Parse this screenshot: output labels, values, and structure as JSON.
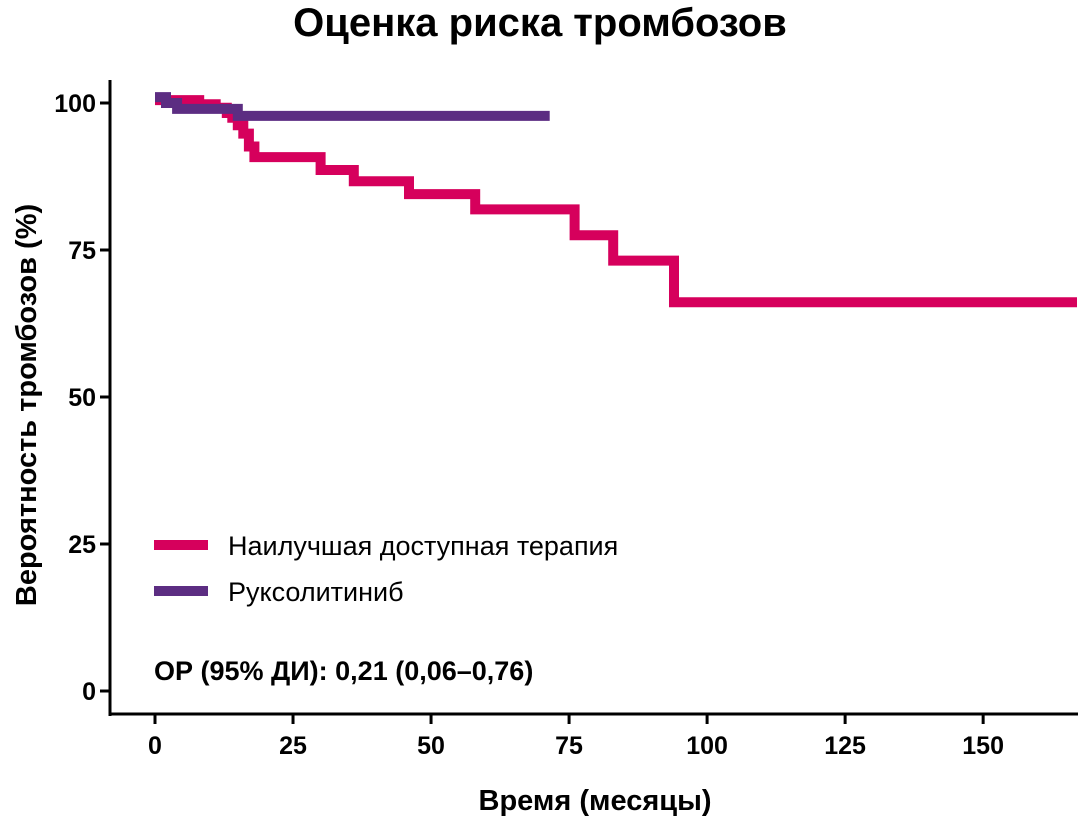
{
  "chart_data": {
    "type": "line",
    "step": true,
    "title": "Оценка риска тромбозов",
    "xlabel": "Время (месяцы)",
    "ylabel": "Вероятность тромбозов (%)",
    "xlim": [
      0,
      167
    ],
    "ylim": [
      0,
      100
    ],
    "xticks": [
      0,
      25,
      50,
      75,
      100,
      125,
      150
    ],
    "yticks": [
      0,
      25,
      50,
      75,
      100
    ],
    "grid": false,
    "legend_position": "bottom-left",
    "annotation": "ОР (95% ДИ): 0,21 (0,06–0,76)",
    "series": [
      {
        "name": "Наилучшая доступная терапия",
        "color": "#d6005c",
        "x": [
          0,
          4,
          8,
          11,
          13,
          14,
          15,
          16,
          17,
          18,
          30,
          36,
          46,
          58,
          76,
          83,
          94,
          167
        ],
        "y": [
          100.5,
          100.5,
          99.8,
          99.2,
          98.3,
          97.5,
          96.2,
          94.8,
          92.6,
          90.8,
          88.6,
          86.7,
          84.5,
          81.9,
          77.5,
          73.2,
          66.1,
          66.1
        ]
      },
      {
        "name": "Руксолитиниб",
        "color": "#5c2d82",
        "x": [
          0,
          2,
          4,
          15,
          71.5
        ],
        "y": [
          101,
          100,
          99,
          97.8,
          97.8
        ]
      }
    ]
  }
}
